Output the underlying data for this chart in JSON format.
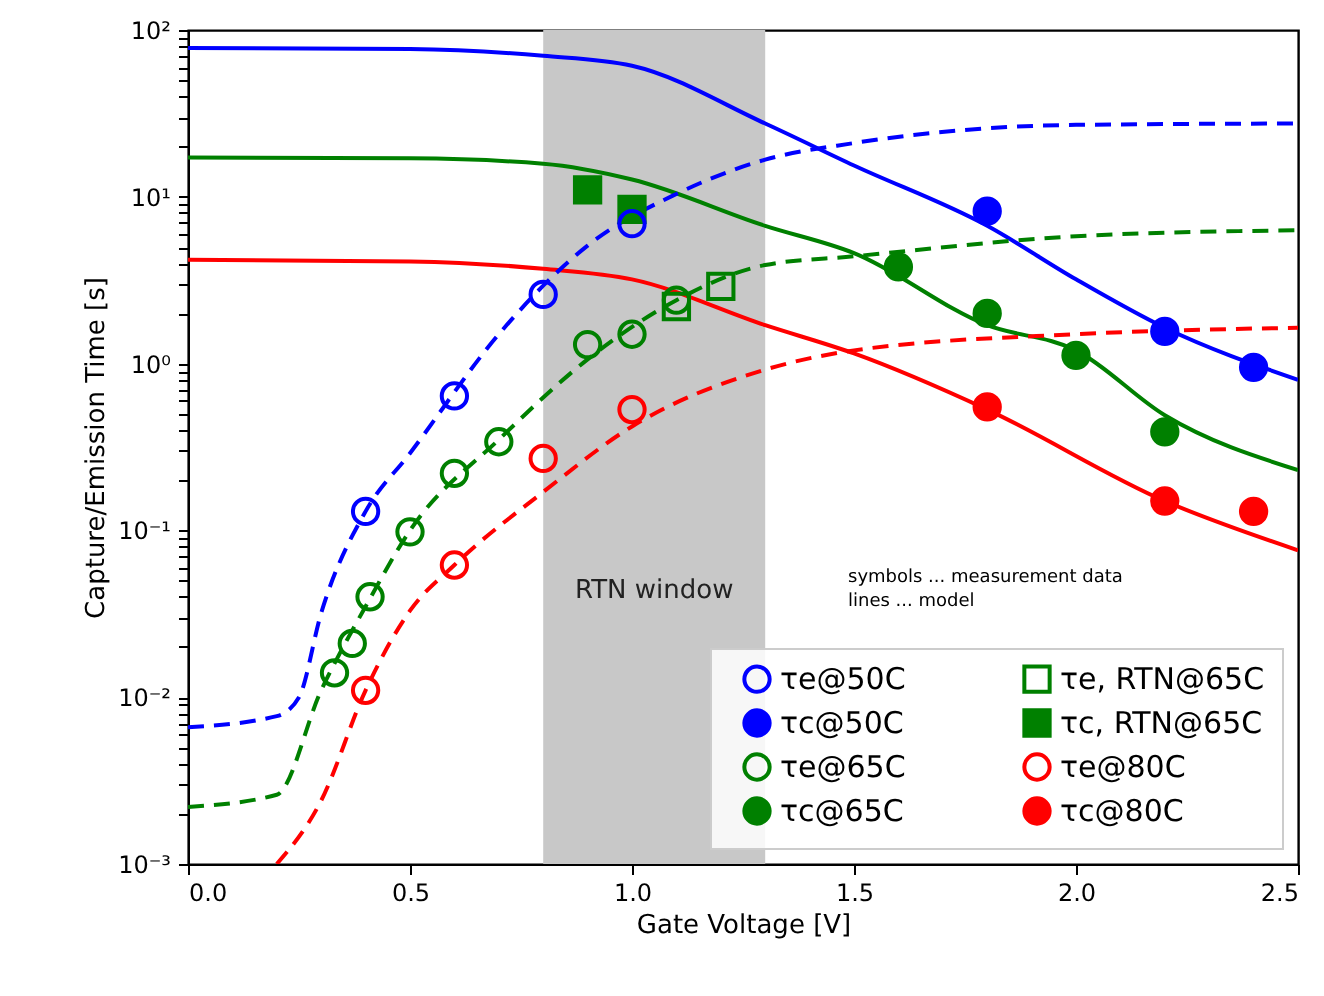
{
  "chart_data": {
    "type": "scatter",
    "xlabel": "Gate Voltage  [V]",
    "ylabel": "Capture/Emission Time  [s]",
    "xlim": [
      0,
      2.5
    ],
    "ylim": [
      0.001,
      100
    ],
    "log": "y",
    "grid": false,
    "legend": "bottom right",
    "xticks": [
      {
        "value": 0,
        "label": "0.0"
      },
      {
        "value": 0.5,
        "label": "0.5"
      },
      {
        "value": 1,
        "label": "1.0"
      },
      {
        "value": 1.5,
        "label": "1.5"
      },
      {
        "value": 2,
        "label": "2.0"
      },
      {
        "value": 2.5,
        "label": "2.5"
      }
    ],
    "yticks": [
      {
        "value": 0.001,
        "label": "10⁻³"
      },
      {
        "value": 0.002,
        "label": null
      },
      {
        "value": 0.003,
        "label": null
      },
      {
        "value": 0.004,
        "label": null
      },
      {
        "value": 0.005,
        "label": null
      },
      {
        "value": 0.006,
        "label": null
      },
      {
        "value": 0.007,
        "label": null
      },
      {
        "value": 0.008,
        "label": null
      },
      {
        "value": 0.009,
        "label": null
      },
      {
        "value": 0.01,
        "label": "10⁻²"
      },
      {
        "value": 0.02,
        "label": null
      },
      {
        "value": 0.03,
        "label": null
      },
      {
        "value": 0.04,
        "label": null
      },
      {
        "value": 0.05,
        "label": null
      },
      {
        "value": 0.06,
        "label": null
      },
      {
        "value": 0.07,
        "label": null
      },
      {
        "value": 0.08,
        "label": null
      },
      {
        "value": 0.09,
        "label": null
      },
      {
        "value": 0.1,
        "label": "10⁻¹"
      },
      {
        "value": 0.2,
        "label": null
      },
      {
        "value": 0.3,
        "label": null
      },
      {
        "value": 0.4,
        "label": null
      },
      {
        "value": 0.5,
        "label": null
      },
      {
        "value": 0.6,
        "label": null
      },
      {
        "value": 0.7,
        "label": null
      },
      {
        "value": 0.8,
        "label": null
      },
      {
        "value": 0.9,
        "label": null
      },
      {
        "value": 1,
        "label": "10⁰"
      },
      {
        "value": 2,
        "label": null
      },
      {
        "value": 3,
        "label": null
      },
      {
        "value": 4,
        "label": null
      },
      {
        "value": 5,
        "label": null
      },
      {
        "value": 6,
        "label": null
      },
      {
        "value": 7,
        "label": null
      },
      {
        "value": 8,
        "label": null
      },
      {
        "value": 9,
        "label": null
      },
      {
        "value": 10,
        "label": "10¹"
      },
      {
        "value": 20,
        "label": null
      },
      {
        "value": 30,
        "label": null
      },
      {
        "value": 40,
        "label": null
      },
      {
        "value": 50,
        "label": null
      },
      {
        "value": 60,
        "label": null
      },
      {
        "value": 70,
        "label": null
      },
      {
        "value": 80,
        "label": null
      },
      {
        "value": 90,
        "label": null
      },
      {
        "value": 100,
        "label": "10²"
      }
    ],
    "bands": [
      {
        "axis": "x",
        "from": 0.8,
        "to": 1.3,
        "label": "RTN window",
        "color": "#c8c8c8"
      }
    ],
    "annotations": [
      "symbols ... measurement data",
      "lines ... model"
    ],
    "series": [
      {
        "name": "τe@50C",
        "marker": "circle-open",
        "color": "#0000ff",
        "x": [
          0.4,
          0.6,
          0.8,
          1.0
        ],
        "values": [
          0.13,
          0.64,
          2.6,
          6.9
        ]
      },
      {
        "name": "τc@50C",
        "marker": "circle",
        "color": "#0000ff",
        "x": [
          1.8,
          2.2,
          2.4
        ],
        "values": [
          8.2,
          1.56,
          0.95
        ]
      },
      {
        "name": "τe@65C",
        "marker": "circle-open",
        "color": "#008000",
        "x": [
          0.33,
          0.37,
          0.41,
          0.5,
          0.6,
          0.7,
          0.9,
          1.0,
          1.1
        ],
        "values": [
          0.014,
          0.021,
          0.04,
          0.098,
          0.22,
          0.34,
          1.3,
          1.5,
          2.4
        ]
      },
      {
        "name": "τc@65C",
        "marker": "circle",
        "color": "#008000",
        "x": [
          1.6,
          1.8,
          2.0,
          2.2
        ],
        "values": [
          3.8,
          2.0,
          1.12,
          0.39
        ]
      },
      {
        "name": "τe, RTN@65C",
        "marker": "square-open",
        "color": "#008000",
        "x": [
          1.1,
          1.2
        ],
        "values": [
          2.2,
          2.9
        ]
      },
      {
        "name": "τc, RTN@65C",
        "marker": "square",
        "color": "#008000",
        "x": [
          0.9,
          1.0
        ],
        "values": [
          11,
          8.4
        ]
      },
      {
        "name": "τe@80C",
        "marker": "circle-open",
        "color": "#ff0000",
        "x": [
          0.4,
          0.6,
          0.8,
          1.0
        ],
        "values": [
          0.011,
          0.062,
          0.27,
          0.53
        ]
      },
      {
        "name": "τc@80C",
        "marker": "circle",
        "color": "#ff0000",
        "x": [
          1.8,
          2.2,
          2.4
        ],
        "values": [
          0.55,
          0.15,
          0.13
        ]
      },
      {
        "type": "line",
        "line_style": "solid",
        "color": "#0000ff",
        "x": [
          0,
          0.5,
          0.8,
          1.0,
          1.3,
          1.5,
          1.8,
          2.0,
          2.2,
          2.5
        ],
        "values": [
          78,
          77,
          70,
          61,
          27.5,
          15.4,
          6.7,
          3.2,
          1.64,
          0.8
        ]
      },
      {
        "type": "line",
        "line_style": "solid",
        "color": "#008000",
        "x": [
          0,
          0.5,
          0.8,
          1.0,
          1.3,
          1.5,
          1.8,
          2.0,
          2.2,
          2.5
        ],
        "values": [
          17.2,
          17,
          15.8,
          12.7,
          6.7,
          4.6,
          1.7,
          1.2,
          0.49,
          0.23
        ]
      },
      {
        "type": "line",
        "line_style": "solid",
        "color": "#ff0000",
        "x": [
          0,
          0.5,
          0.8,
          1.0,
          1.3,
          1.5,
          1.8,
          2.2,
          2.5
        ],
        "values": [
          4.2,
          4.1,
          3.7,
          3.2,
          1.7,
          1.15,
          0.53,
          0.15,
          0.076
        ]
      },
      {
        "type": "line",
        "line_style": "dashed",
        "color": "#0000ff",
        "x": [
          0,
          0.2,
          0.25,
          0.3,
          0.4,
          0.5,
          0.7,
          0.9,
          1.1,
          1.3,
          1.5,
          2.0,
          2.5
        ],
        "values": [
          0.0066,
          0.0077,
          0.01,
          0.032,
          0.13,
          0.29,
          1.5,
          5.1,
          10.4,
          16.7,
          21,
          27,
          27.5
        ]
      },
      {
        "type": "line",
        "line_style": "dashed",
        "color": "#008000",
        "x": [
          0,
          0.2,
          0.3,
          0.4,
          0.5,
          0.7,
          0.9,
          1.1,
          1.3,
          1.5,
          2.0,
          2.5
        ],
        "values": [
          0.0022,
          0.0026,
          0.011,
          0.035,
          0.1,
          0.35,
          1.06,
          2.4,
          3.9,
          4.4,
          5.8,
          6.3
        ]
      },
      {
        "type": "line",
        "line_style": "dashed",
        "color": "#ff0000",
        "x": [
          0.2,
          0.3,
          0.4,
          0.5,
          0.6,
          0.8,
          1.0,
          1.3,
          1.5,
          2.0,
          2.5
        ],
        "values": [
          0.001,
          0.0024,
          0.011,
          0.033,
          0.062,
          0.17,
          0.42,
          0.92,
          1.2,
          1.5,
          1.64
        ]
      }
    ]
  }
}
